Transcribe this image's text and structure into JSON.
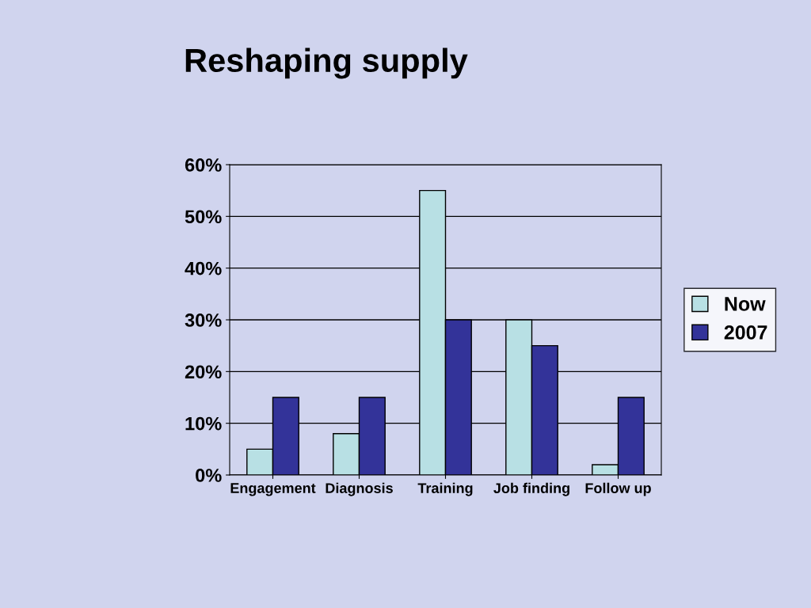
{
  "chart_data": {
    "type": "bar",
    "title": "Reshaping supply",
    "categories": [
      "Engagement",
      "Diagnosis",
      "Training",
      "Job finding",
      "Follow up"
    ],
    "series": [
      {
        "name": "Now",
        "color": "#b8e0e4",
        "values": [
          5,
          8,
          55,
          30,
          2
        ]
      },
      {
        "name": "2007",
        "color": "#333399",
        "values": [
          15,
          15,
          30,
          25,
          15
        ]
      }
    ],
    "ylim": [
      0,
      60
    ],
    "yticks": [
      {
        "value": 0,
        "label": "0%"
      },
      {
        "value": 10,
        "label": "10%"
      },
      {
        "value": 20,
        "label": "20%"
      },
      {
        "value": 30,
        "label": "30%"
      },
      {
        "value": 40,
        "label": "40%"
      },
      {
        "value": 50,
        "label": "50%"
      },
      {
        "value": 60,
        "label": "60%"
      }
    ],
    "grid": "y",
    "legend": "right"
  }
}
